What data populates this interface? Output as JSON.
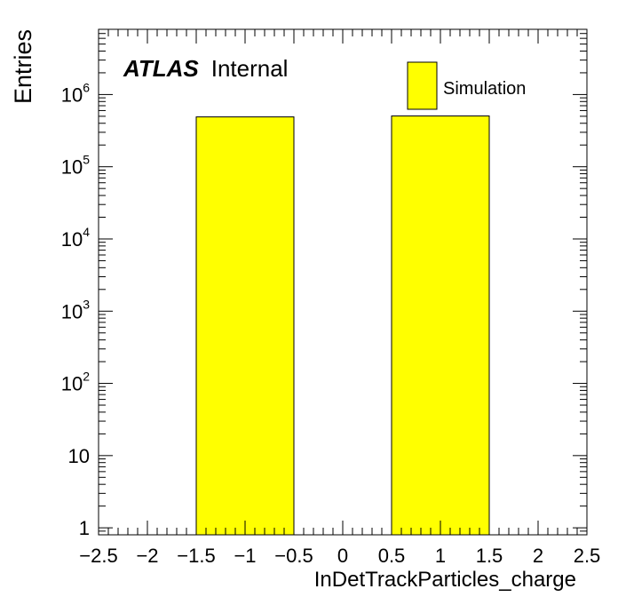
{
  "chart_data": {
    "type": "bar",
    "xlabel": "InDetTrackParticles_charge",
    "ylabel": "Entries",
    "xlim": [
      -2.5,
      2.5
    ],
    "ylim": [
      0.8,
      8000000
    ],
    "yscale": "log",
    "grid": false,
    "xticks": [
      "−2.5",
      "−2",
      "−1.5",
      "−1",
      "−0.5",
      "0",
      "0.5",
      "1",
      "1.5",
      "2",
      "2.5"
    ],
    "xtick_values": [
      -2.5,
      -2,
      -1.5,
      -1,
      -0.5,
      0,
      0.5,
      1,
      1.5,
      2,
      2.5
    ],
    "yticks": [
      {
        "value": 1,
        "base": "1",
        "exp": ""
      },
      {
        "value": 10,
        "base": "10",
        "exp": ""
      },
      {
        "value": 100,
        "base": "10",
        "exp": "2"
      },
      {
        "value": 1000,
        "base": "10",
        "exp": "3"
      },
      {
        "value": 10000,
        "base": "10",
        "exp": "4"
      },
      {
        "value": 100000,
        "base": "10",
        "exp": "5"
      },
      {
        "value": 1000000,
        "base": "10",
        "exp": "6"
      }
    ],
    "bins": [
      {
        "low": -1.5,
        "high": -0.5,
        "value": 490000
      },
      {
        "low": 0.5,
        "high": 1.5,
        "value": 505000
      }
    ],
    "series": [
      {
        "name": "Simulation",
        "color": "#ffff00"
      }
    ],
    "legend_position": "top-right",
    "annotation": {
      "bold": "ATLAS",
      "text": "Internal"
    }
  }
}
